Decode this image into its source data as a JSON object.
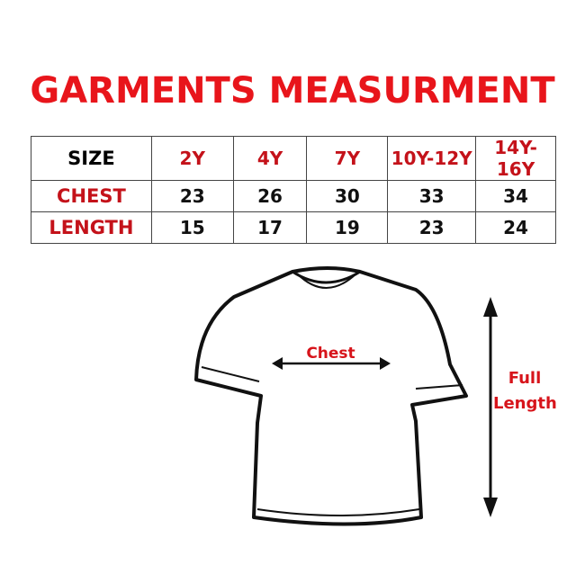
{
  "title": "GARMENTS MEASURMENT",
  "table": {
    "headers": [
      "SIZE",
      "2Y",
      "4Y",
      "7Y",
      "10Y-12Y",
      "14Y-16Y"
    ],
    "rows": [
      {
        "label": "CHEST",
        "values": [
          "23",
          "26",
          "30",
          "33",
          "34"
        ]
      },
      {
        "label": "LENGTH",
        "values": [
          "15",
          "17",
          "19",
          "23",
          "24"
        ]
      }
    ]
  },
  "diagram": {
    "chest_label": "Chest",
    "length_label_line1": "Full",
    "length_label_line2": "Length"
  },
  "colors": {
    "accent": "#e8151b",
    "text": "#111111"
  }
}
